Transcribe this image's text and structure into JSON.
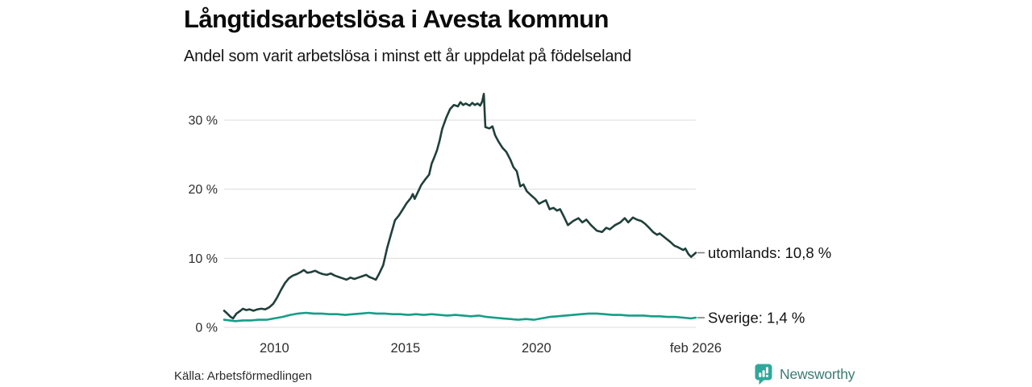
{
  "header": {
    "title": "Långtidsarbetslösa i Avesta kommun",
    "subtitle": "Andel som varit arbetslösa i minst ett år uppdelat på födelseland"
  },
  "chart_data": {
    "type": "line",
    "title": "Långtidsarbetslösa i Avesta kommun",
    "subtitle": "Andel som varit arbetslösa i minst ett år uppdelat på födelseland",
    "unit": "%",
    "xlim": [
      2008.08,
      2026.08
    ],
    "ylim": [
      0,
      35
    ],
    "grid": true,
    "grid_color": "#dcdcdc",
    "tick_color": "#2e2e2e",
    "legend_position": "right-of-line-end",
    "leader_dash_color": "#7d7d7d",
    "y_ticks": [
      {
        "value": 0,
        "label": "0 %"
      },
      {
        "value": 10,
        "label": "10 %"
      },
      {
        "value": 20,
        "label": "20 %"
      },
      {
        "value": 30,
        "label": "30 %"
      }
    ],
    "x_ticks": [
      {
        "year": 2010,
        "label": "2010"
      },
      {
        "year": 2015,
        "label": "2015"
      },
      {
        "year": 2020,
        "label": "2020"
      },
      {
        "year": 2026.08,
        "label": "feb 2026"
      }
    ],
    "series": [
      {
        "name": "utomlands",
        "label": "utomlands: 10,8 %",
        "end_value": "10,8 %",
        "color": "#20403a",
        "points": [
          [
            2008.08,
            2.4
          ],
          [
            2008.2,
            2.0
          ],
          [
            2008.33,
            1.5
          ],
          [
            2008.42,
            1.3
          ],
          [
            2008.55,
            2.0
          ],
          [
            2008.7,
            2.4
          ],
          [
            2008.8,
            2.7
          ],
          [
            2008.92,
            2.5
          ],
          [
            2009.05,
            2.6
          ],
          [
            2009.2,
            2.4
          ],
          [
            2009.35,
            2.6
          ],
          [
            2009.5,
            2.7
          ],
          [
            2009.65,
            2.6
          ],
          [
            2009.8,
            2.9
          ],
          [
            2009.95,
            3.4
          ],
          [
            2010.1,
            4.3
          ],
          [
            2010.25,
            5.4
          ],
          [
            2010.4,
            6.4
          ],
          [
            2010.55,
            7.1
          ],
          [
            2010.7,
            7.5
          ],
          [
            2010.85,
            7.7
          ],
          [
            2011.0,
            8.0
          ],
          [
            2011.12,
            8.3
          ],
          [
            2011.25,
            7.9
          ],
          [
            2011.4,
            8.0
          ],
          [
            2011.55,
            8.2
          ],
          [
            2011.7,
            7.9
          ],
          [
            2011.85,
            7.7
          ],
          [
            2012.0,
            7.6
          ],
          [
            2012.15,
            7.8
          ],
          [
            2012.3,
            7.5
          ],
          [
            2012.45,
            7.3
          ],
          [
            2012.6,
            7.1
          ],
          [
            2012.75,
            6.9
          ],
          [
            2012.9,
            7.2
          ],
          [
            2013.05,
            7.0
          ],
          [
            2013.2,
            7.2
          ],
          [
            2013.35,
            7.4
          ],
          [
            2013.5,
            7.6
          ],
          [
            2013.62,
            7.3
          ],
          [
            2013.75,
            7.1
          ],
          [
            2013.87,
            6.9
          ],
          [
            2014.0,
            7.8
          ],
          [
            2014.15,
            9.0
          ],
          [
            2014.3,
            11.5
          ],
          [
            2014.45,
            13.5
          ],
          [
            2014.6,
            15.5
          ],
          [
            2014.75,
            16.2
          ],
          [
            2014.9,
            17.1
          ],
          [
            2015.05,
            18.0
          ],
          [
            2015.2,
            18.7
          ],
          [
            2015.28,
            19.3
          ],
          [
            2015.35,
            18.6
          ],
          [
            2015.5,
            19.8
          ],
          [
            2015.6,
            20.6
          ],
          [
            2015.75,
            21.4
          ],
          [
            2015.9,
            22.1
          ],
          [
            2016.0,
            23.7
          ],
          [
            2016.1,
            24.6
          ],
          [
            2016.2,
            25.6
          ],
          [
            2016.3,
            27.0
          ],
          [
            2016.4,
            28.7
          ],
          [
            2016.55,
            30.3
          ],
          [
            2016.7,
            31.6
          ],
          [
            2016.85,
            32.2
          ],
          [
            2017.0,
            32.0
          ],
          [
            2017.1,
            32.6
          ],
          [
            2017.2,
            32.2
          ],
          [
            2017.3,
            32.4
          ],
          [
            2017.45,
            32.1
          ],
          [
            2017.55,
            32.5
          ],
          [
            2017.65,
            32.2
          ],
          [
            2017.75,
            32.4
          ],
          [
            2017.85,
            32.1
          ],
          [
            2017.93,
            32.7
          ],
          [
            2017.99,
            33.8
          ],
          [
            2018.05,
            29.0
          ],
          [
            2018.2,
            28.8
          ],
          [
            2018.32,
            29.1
          ],
          [
            2018.42,
            27.8
          ],
          [
            2018.55,
            26.9
          ],
          [
            2018.7,
            26.0
          ],
          [
            2018.85,
            25.4
          ],
          [
            2019.0,
            24.3
          ],
          [
            2019.12,
            23.2
          ],
          [
            2019.25,
            22.6
          ],
          [
            2019.38,
            20.4
          ],
          [
            2019.5,
            20.7
          ],
          [
            2019.63,
            19.7
          ],
          [
            2019.8,
            19.1
          ],
          [
            2019.95,
            18.6
          ],
          [
            2020.1,
            17.9
          ],
          [
            2020.25,
            18.2
          ],
          [
            2020.36,
            18.4
          ],
          [
            2020.5,
            17.1
          ],
          [
            2020.65,
            17.3
          ],
          [
            2020.78,
            16.9
          ],
          [
            2020.9,
            17.1
          ],
          [
            2021.05,
            16.0
          ],
          [
            2021.2,
            14.8
          ],
          [
            2021.4,
            15.4
          ],
          [
            2021.6,
            15.8
          ],
          [
            2021.75,
            15.2
          ],
          [
            2021.9,
            15.6
          ],
          [
            2022.08,
            14.8
          ],
          [
            2022.3,
            14.0
          ],
          [
            2022.5,
            13.8
          ],
          [
            2022.66,
            14.4
          ],
          [
            2022.8,
            14.2
          ],
          [
            2023.0,
            14.8
          ],
          [
            2023.2,
            15.2
          ],
          [
            2023.37,
            15.8
          ],
          [
            2023.5,
            15.2
          ],
          [
            2023.68,
            15.9
          ],
          [
            2023.83,
            15.6
          ],
          [
            2024.0,
            15.4
          ],
          [
            2024.14,
            15.0
          ],
          [
            2024.3,
            14.4
          ],
          [
            2024.45,
            13.8
          ],
          [
            2024.6,
            13.4
          ],
          [
            2024.7,
            13.6
          ],
          [
            2024.96,
            12.8
          ],
          [
            2025.1,
            12.4
          ],
          [
            2025.27,
            11.8
          ],
          [
            2025.4,
            11.6
          ],
          [
            2025.6,
            11.2
          ],
          [
            2025.68,
            11.4
          ],
          [
            2025.8,
            10.6
          ],
          [
            2025.9,
            10.2
          ],
          [
            2026.08,
            10.8
          ]
        ]
      },
      {
        "name": "sverige",
        "label": "Sverige:  1,4 %",
        "end_value": "1,4 %",
        "color": "#169d88",
        "points": [
          [
            2008.08,
            1.1
          ],
          [
            2008.3,
            1.0
          ],
          [
            2008.5,
            0.9
          ],
          [
            2008.8,
            1.0
          ],
          [
            2009.1,
            1.0
          ],
          [
            2009.4,
            1.1
          ],
          [
            2009.7,
            1.1
          ],
          [
            2010.0,
            1.3
          ],
          [
            2010.3,
            1.5
          ],
          [
            2010.6,
            1.8
          ],
          [
            2010.9,
            2.0
          ],
          [
            2011.2,
            2.1
          ],
          [
            2011.5,
            2.0
          ],
          [
            2011.8,
            2.0
          ],
          [
            2012.1,
            1.9
          ],
          [
            2012.4,
            1.9
          ],
          [
            2012.7,
            1.8
          ],
          [
            2013.0,
            1.9
          ],
          [
            2013.3,
            2.0
          ],
          [
            2013.6,
            2.1
          ],
          [
            2013.9,
            2.0
          ],
          [
            2014.2,
            2.0
          ],
          [
            2014.5,
            1.9
          ],
          [
            2014.8,
            1.9
          ],
          [
            2015.1,
            1.8
          ],
          [
            2015.4,
            1.9
          ],
          [
            2015.7,
            1.8
          ],
          [
            2016.0,
            1.9
          ],
          [
            2016.3,
            1.8
          ],
          [
            2016.6,
            1.7
          ],
          [
            2016.9,
            1.8
          ],
          [
            2017.2,
            1.7
          ],
          [
            2017.5,
            1.6
          ],
          [
            2017.8,
            1.7
          ],
          [
            2018.1,
            1.5
          ],
          [
            2018.4,
            1.4
          ],
          [
            2018.7,
            1.3
          ],
          [
            2019.0,
            1.2
          ],
          [
            2019.3,
            1.1
          ],
          [
            2019.6,
            1.2
          ],
          [
            2019.9,
            1.1
          ],
          [
            2020.2,
            1.3
          ],
          [
            2020.5,
            1.5
          ],
          [
            2020.8,
            1.6
          ],
          [
            2021.1,
            1.7
          ],
          [
            2021.4,
            1.8
          ],
          [
            2021.7,
            1.9
          ],
          [
            2022.0,
            2.0
          ],
          [
            2022.3,
            2.0
          ],
          [
            2022.6,
            1.9
          ],
          [
            2022.9,
            1.8
          ],
          [
            2023.2,
            1.8
          ],
          [
            2023.5,
            1.7
          ],
          [
            2023.8,
            1.7
          ],
          [
            2024.1,
            1.7
          ],
          [
            2024.4,
            1.6
          ],
          [
            2024.7,
            1.6
          ],
          [
            2025.0,
            1.5
          ],
          [
            2025.3,
            1.5
          ],
          [
            2025.6,
            1.4
          ],
          [
            2025.9,
            1.3
          ],
          [
            2026.08,
            1.4
          ]
        ]
      }
    ]
  },
  "footer": {
    "source": "Källa: Arbetsförmedlingen"
  },
  "branding": {
    "name": "Newsworthy",
    "icon": "bar-chart-speech-bubble-icon",
    "icon_color": "#2fa89a",
    "text_color": "#3b7a73"
  }
}
